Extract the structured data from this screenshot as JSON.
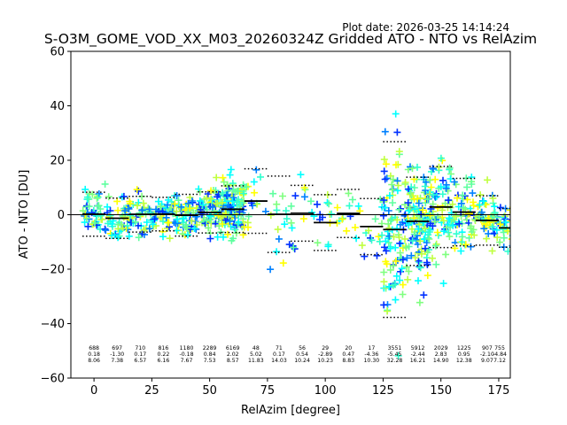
{
  "chart_data": {
    "type": "scatter",
    "title": "S-O3M_GOME_VOD_XX_M03_20260324Z Gridded ATO - NTO vs RelAzim",
    "plot_date": "Plot date: 2026-03-25 14:14:24",
    "xlabel": "RelAzim [degree]",
    "ylabel": "ATO - NTO [DU]",
    "xlim": [
      -10,
      180
    ],
    "ylim": [
      -60,
      60
    ],
    "xticks": [
      0,
      25,
      50,
      75,
      100,
      125,
      150,
      175
    ],
    "yticks": [
      -60,
      -40,
      -20,
      0,
      20,
      40,
      60
    ],
    "xtick_labels": [
      "0",
      "25",
      "50",
      "75",
      "100",
      "125",
      "150",
      "175"
    ],
    "ytick_labels": [
      "−60",
      "−40",
      "−20",
      "0",
      "20",
      "40",
      "60"
    ],
    "point_colors": [
      "#7fff7f",
      "#5fff9f",
      "#00ffff",
      "#ffff00",
      "#c0ff40",
      "#30ffcf",
      "#0080ff",
      "#0030ff"
    ],
    "bins": [
      {
        "x": 0,
        "mean": 0.18,
        "std": 8.06,
        "count": "688",
        "mean_label": "0.18",
        "std_label": "8.06"
      },
      {
        "x": 10,
        "mean": -1.3,
        "std": 7.38,
        "count": "697",
        "mean_label": "-1.30",
        "std_label": "7.38"
      },
      {
        "x": 20,
        "mean": 0.17,
        "std": 6.57,
        "count": "710",
        "mean_label": "0.17",
        "std_label": "6.57"
      },
      {
        "x": 30,
        "mean": 0.22,
        "std": 6.16,
        "count": "816",
        "mean_label": "0.22",
        "std_label": "6.16"
      },
      {
        "x": 40,
        "mean": -0.18,
        "std": 7.67,
        "count": "1180",
        "mean_label": "-0.18",
        "std_label": "7.67"
      },
      {
        "x": 50,
        "mean": 0.84,
        "std": 7.53,
        "count": "2289",
        "mean_label": "0.84",
        "std_label": "7.53"
      },
      {
        "x": 60,
        "mean": 2.02,
        "std": 8.57,
        "count": "6169",
        "mean_label": "2.02",
        "std_label": "8.57"
      },
      {
        "x": 70,
        "mean": 5.02,
        "std": 11.83,
        "count": "48",
        "mean_label": "5.02",
        "std_label": "11.83"
      },
      {
        "x": 80,
        "mean": 0.17,
        "std": 14.03,
        "count": "71",
        "mean_label": "0.17",
        "std_label": "14.03"
      },
      {
        "x": 90,
        "mean": 0.54,
        "std": 10.24,
        "count": "56",
        "mean_label": "0.54",
        "std_label": "10.24"
      },
      {
        "x": 100,
        "mean": -2.89,
        "std": 10.23,
        "count": "29",
        "mean_label": "-2.89",
        "std_label": "10.23"
      },
      {
        "x": 110,
        "mean": 0.47,
        "std": 8.83,
        "count": "20",
        "mean_label": "0.47",
        "std_label": "8.83"
      },
      {
        "x": 120,
        "mean": -4.36,
        "std": 10.3,
        "count": "17",
        "mean_label": "-4.36",
        "std_label": "10.30"
      },
      {
        "x": 130,
        "mean": -5.45,
        "std": 32.28,
        "count": "3551",
        "mean_label": "-5.45",
        "std_label": "32.28"
      },
      {
        "x": 140,
        "mean": -2.44,
        "std": 16.21,
        "count": "5912",
        "mean_label": "-2.44",
        "std_label": "16.21"
      },
      {
        "x": 150,
        "mean": 2.83,
        "std": 14.9,
        "count": "2029",
        "mean_label": "2.83",
        "std_label": "14.90"
      },
      {
        "x": 160,
        "mean": 0.95,
        "std": 12.38,
        "count": "1225",
        "mean_label": "0.95",
        "std_label": "12.38"
      },
      {
        "x": 170,
        "mean": -2.1,
        "std": 9.07,
        "count": "907",
        "mean_label": "-2.10",
        "std_label": "9.07"
      },
      {
        "x": 180,
        "mean": -4.84,
        "std": 7.12,
        "count": "755",
        "mean_label": "-4.84",
        "std_label": "7.12"
      }
    ]
  }
}
